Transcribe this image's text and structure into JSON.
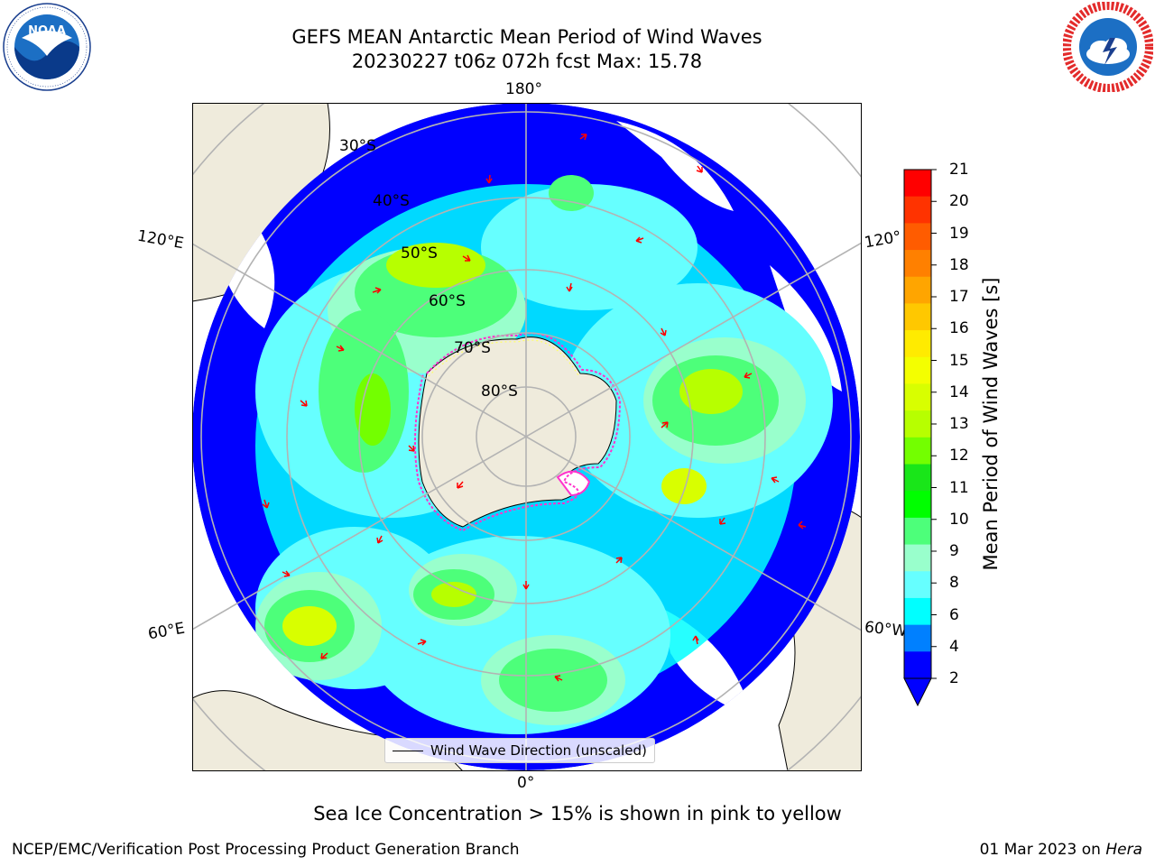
{
  "header": {
    "title_line1": "GEFS MEAN Antarctic Mean Period of Wind Waves",
    "title_line2": "20230227 t06z 072h fcst   Max: 15.78"
  },
  "logos": {
    "left": {
      "icon": "noaa-logo-icon",
      "text": "NOAA"
    },
    "right": {
      "icon": "national-weather-service-logo-icon"
    }
  },
  "map": {
    "projection": "south-polar-stereographic",
    "longitude_labels": {
      "top": "180°",
      "left": "120°E",
      "right": "120°",
      "bottom_left": "60°E",
      "bottom_right": "60°W",
      "bottom": "0°"
    },
    "latitude_labels": [
      "30°S",
      "40°S",
      "50°S",
      "60°S",
      "70°S",
      "80°S"
    ],
    "land_color": "#efebdc",
    "grid_color": "#b3b3b3",
    "arrow_color": "#ff0000",
    "ice_edge_colors": [
      "#ff33cc",
      "#ffff66"
    ]
  },
  "legend": {
    "label": "Wind Wave Direction (unscaled)"
  },
  "colorbar": {
    "label": "Mean Period of Wind Waves [s]",
    "ticks": [
      "21",
      "20",
      "19",
      "18",
      "17",
      "16",
      "15",
      "14",
      "13",
      "12",
      "11",
      "10",
      "9",
      "8",
      "6",
      "4",
      "2"
    ],
    "extend": "min",
    "colors": [
      "#ff0000",
      "#ff3300",
      "#ff5c00",
      "#ff8000",
      "#ffa500",
      "#ffc800",
      "#ffeb00",
      "#f4ff00",
      "#d8ff00",
      "#b7ff00",
      "#73ff00",
      "#19e619",
      "#00ff00",
      "#4dff7a",
      "#99ffcc",
      "#66ffff",
      "#00ffff",
      "#0080ff",
      "#0000ff"
    ]
  },
  "note": "Sea Ice Concentration > 15% is shown in pink to yellow",
  "footer": {
    "left": "NCEP/EMC/Verification Post Processing Product Generation Branch",
    "date": "01 Mar 2023 on ",
    "machine": "Hera"
  }
}
